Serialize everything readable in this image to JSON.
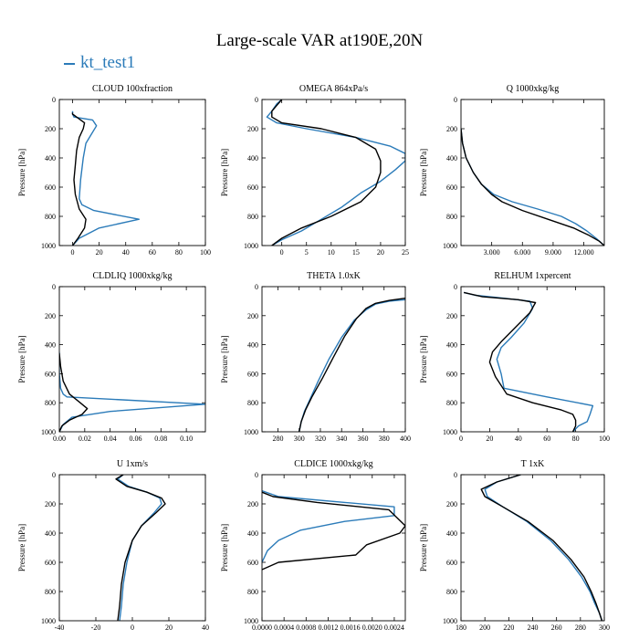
{
  "title": "Large-scale VAR at190E,20N",
  "legend": [
    {
      "name": "kt_test1",
      "color": "#2b7bb9"
    }
  ],
  "colors": {
    "series_1": "#2b7bb9",
    "series_2": "#000000"
  },
  "chart_data": [
    {
      "type": "line",
      "title": "CLOUD  100xfraction",
      "ylabel": "Pressure [hPa]",
      "xlim": [
        -10,
        100
      ],
      "ylim": [
        1000,
        0
      ],
      "xticks": [
        0,
        20,
        40,
        60,
        80,
        100
      ],
      "yticks": [
        0,
        200,
        400,
        600,
        800,
        1000
      ],
      "series": [
        {
          "name": "kt_test1",
          "x": [
            0,
            0,
            1,
            15,
            18,
            14,
            10,
            8,
            6,
            5,
            7,
            16,
            50,
            20,
            5,
            0
          ],
          "y": [
            80,
            100,
            120,
            140,
            180,
            240,
            300,
            400,
            550,
            680,
            720,
            760,
            820,
            880,
            950,
            1000
          ]
        },
        {
          "x": [
            0,
            0,
            3,
            9,
            8,
            5,
            3,
            2,
            1,
            2,
            5,
            10,
            9,
            4,
            0
          ],
          "y": [
            90,
            100,
            120,
            160,
            200,
            260,
            350,
            450,
            550,
            650,
            750,
            820,
            880,
            950,
            1000
          ]
        }
      ]
    },
    {
      "type": "line",
      "title": "OMEGA  864xPa/s",
      "ylabel": "Pressure [hPa]",
      "xlim": [
        -4,
        25
      ],
      "ylim": [
        1000,
        0
      ],
      "xticks": [
        0,
        5,
        10,
        15,
        20,
        25
      ],
      "yticks": [
        0,
        200,
        400,
        600,
        800,
        1000
      ],
      "series": [
        {
          "name": "kt_test1",
          "x": [
            0,
            -1,
            -2,
            -3,
            -1,
            5,
            15,
            22,
            25,
            25,
            23,
            20,
            16,
            12,
            8,
            4,
            0,
            -2
          ],
          "y": [
            0,
            30,
            80,
            120,
            160,
            200,
            260,
            320,
            370,
            420,
            480,
            560,
            640,
            740,
            820,
            900,
            960,
            1000
          ]
        },
        {
          "x": [
            0,
            -1,
            -2,
            -2,
            0,
            8,
            15,
            19,
            20,
            20,
            19,
            16,
            10,
            4,
            0,
            -2
          ],
          "y": [
            0,
            40,
            80,
            120,
            160,
            200,
            260,
            340,
            420,
            500,
            600,
            700,
            800,
            880,
            950,
            1000
          ]
        }
      ]
    },
    {
      "type": "line",
      "title": "Q  1000xkg/kg",
      "ylabel": "Pressure [hPa]",
      "xlim": [
        0,
        14000
      ],
      "ylim": [
        1000,
        0
      ],
      "xticks": [
        3000,
        6000,
        9000,
        12000
      ],
      "xticklabels": [
        "3.000",
        "6.000",
        "9.000",
        "12.000"
      ],
      "yticks": [
        0,
        200,
        400,
        600,
        800,
        1000
      ],
      "series": [
        {
          "name": "kt_test1",
          "x": [
            0,
            150,
            500,
            1200,
            2000,
            3200,
            5000,
            7500,
            9800,
            11200,
            12300,
            13200,
            14000
          ],
          "y": [
            200,
            300,
            400,
            500,
            580,
            650,
            700,
            750,
            800,
            850,
            900,
            950,
            1000
          ]
        },
        {
          "x": [
            0,
            150,
            500,
            1200,
            2000,
            3000,
            4000,
            6000,
            8500,
            11000,
            12500,
            13500,
            14000
          ],
          "y": [
            200,
            300,
            400,
            500,
            580,
            650,
            700,
            760,
            820,
            880,
            930,
            970,
            1000
          ]
        }
      ]
    },
    {
      "type": "line",
      "title": "CLDLIQ  1000xkg/kg",
      "ylabel": "Pressure [hPa]",
      "xlim": [
        0,
        0.115
      ],
      "ylim": [
        1000,
        0
      ],
      "xticks": [
        0,
        0.02,
        0.04,
        0.06,
        0.08,
        0.1
      ],
      "xticklabels": [
        "0.00",
        "0.02",
        "0.04",
        "0.06",
        "0.08",
        "0.10"
      ],
      "yticks": [
        0,
        200,
        400,
        600,
        800,
        1000
      ],
      "series": [
        {
          "name": "kt_test1",
          "x": [
            0,
            0,
            0.001,
            0.003,
            0.006,
            0.115,
            0.04,
            0.01,
            0.003,
            0
          ],
          "y": [
            450,
            600,
            700,
            740,
            760,
            810,
            860,
            900,
            950,
            1000
          ]
        },
        {
          "x": [
            0,
            0.001,
            0.003,
            0.008,
            0.015,
            0.022,
            0.018,
            0.008,
            0.002,
            0
          ],
          "y": [
            460,
            550,
            650,
            740,
            790,
            840,
            880,
            920,
            960,
            1000
          ]
        }
      ]
    },
    {
      "type": "line",
      "title": "THETA  1.0xK",
      "ylabel": "Pressure [hPa]",
      "xlim": [
        265,
        400
      ],
      "ylim": [
        1000,
        0
      ],
      "xticks": [
        280,
        300,
        320,
        340,
        360,
        380,
        400
      ],
      "yticks": [
        0,
        200,
        400,
        600,
        800,
        1000
      ],
      "series": [
        {
          "name": "kt_test1",
          "x": [
            400,
            385,
            372,
            363,
            352,
            340,
            328,
            318,
            310,
            305,
            302,
            300
          ],
          "y": [
            90,
            100,
            120,
            160,
            230,
            350,
            500,
            650,
            780,
            860,
            930,
            1000
          ]
        },
        {
          "x": [
            400,
            385,
            372,
            363,
            354,
            343,
            332,
            322,
            312,
            306,
            302,
            300
          ],
          "y": [
            80,
            95,
            115,
            150,
            220,
            340,
            490,
            630,
            760,
            850,
            930,
            1000
          ]
        }
      ]
    },
    {
      "type": "line",
      "title": "RELHUM  1xpercent",
      "ylabel": "Pressure [hPa]",
      "xlim": [
        0,
        100
      ],
      "ylim": [
        1000,
        0
      ],
      "xticks": [
        0,
        20,
        40,
        60,
        80,
        100
      ],
      "yticks": [
        0,
        200,
        400,
        600,
        800,
        1000
      ],
      "series": [
        {
          "name": "kt_test1",
          "x": [
            2,
            10,
            30,
            48,
            50,
            44,
            35,
            28,
            25,
            28,
            30,
            60,
            92,
            90,
            88,
            82,
            78
          ],
          "y": [
            40,
            60,
            80,
            100,
            150,
            250,
            350,
            420,
            500,
            600,
            700,
            760,
            820,
            880,
            930,
            960,
            1000
          ]
        },
        {
          "x": [
            2,
            15,
            40,
            52,
            48,
            38,
            28,
            22,
            20,
            24,
            32,
            50,
            70,
            78,
            80,
            80,
            78
          ],
          "y": [
            40,
            70,
            90,
            110,
            180,
            280,
            380,
            450,
            520,
            620,
            740,
            800,
            850,
            880,
            920,
            960,
            1000
          ]
        }
      ]
    },
    {
      "type": "line",
      "title": "U  1xm/s",
      "ylabel": "Pressure [hPa]",
      "xlim": [
        -40,
        40
      ],
      "ylim": [
        1000,
        0
      ],
      "xticks": [
        -40,
        -20,
        0,
        20,
        40
      ],
      "yticks": [
        0,
        200,
        400,
        600,
        800,
        1000
      ],
      "series": [
        {
          "name": "kt_test1",
          "x": [
            -5,
            -8,
            -2,
            8,
            15,
            16,
            12,
            5,
            0,
            -3,
            -5,
            -6,
            -7
          ],
          "y": [
            0,
            30,
            80,
            120,
            160,
            200,
            260,
            350,
            450,
            600,
            750,
            900,
            1000
          ]
        },
        {
          "x": [
            -5,
            -9,
            -3,
            8,
            16,
            18,
            13,
            5,
            0,
            -4,
            -6,
            -7,
            -8
          ],
          "y": [
            0,
            30,
            80,
            120,
            160,
            200,
            260,
            350,
            450,
            600,
            750,
            900,
            1000
          ]
        }
      ]
    },
    {
      "type": "line",
      "title": "CLDICE  1000xkg/kg",
      "ylabel": "Pressure [hPa]",
      "xlim": [
        0,
        0.0026
      ],
      "ylim": [
        1000,
        0
      ],
      "xticks": [
        0,
        0.0004,
        0.0008,
        0.0012,
        0.0016,
        0.002,
        0.0024
      ],
      "xticklabels": [
        "0.0000",
        "0.0004",
        "0.0008",
        "0.0012",
        "0.0016",
        "0.0020",
        "0.0024"
      ],
      "yticks": [
        0,
        200,
        400,
        600,
        800,
        1000
      ],
      "series": [
        {
          "name": "kt_test1",
          "x": [
            0,
            0.0003,
            0.0024,
            0.0024,
            0.0015,
            0.0007,
            0.0003,
            0.0001,
            0
          ],
          "y": [
            110,
            150,
            220,
            280,
            320,
            380,
            450,
            520,
            600
          ]
        },
        {
          "x": [
            0,
            0.0002,
            0.001,
            0.0023,
            0.0026,
            0.0025,
            0.0019,
            0.0017,
            0.0003,
            0
          ],
          "y": [
            120,
            150,
            190,
            240,
            350,
            400,
            480,
            550,
            600,
            650
          ]
        }
      ]
    },
    {
      "type": "line",
      "title": "T  1xK",
      "ylabel": "Pressure [hPa]",
      "xlim": [
        180,
        300
      ],
      "ylim": [
        1000,
        0
      ],
      "xticks": [
        180,
        200,
        220,
        240,
        260,
        280,
        300
      ],
      "yticks": [
        0,
        200,
        400,
        600,
        800,
        1000
      ],
      "series": [
        {
          "name": "kt_test1",
          "x": [
            230,
            210,
            200,
            202,
            215,
            235,
            255,
            270,
            281,
            288,
            292,
            296,
            298
          ],
          "y": [
            0,
            50,
            100,
            150,
            220,
            320,
            450,
            580,
            700,
            800,
            880,
            950,
            1000
          ]
        },
        {
          "x": [
            230,
            210,
            197,
            200,
            215,
            236,
            257,
            272,
            283,
            289,
            293,
            296,
            298
          ],
          "y": [
            0,
            50,
            100,
            150,
            220,
            320,
            450,
            580,
            700,
            800,
            880,
            950,
            1000
          ]
        }
      ]
    }
  ]
}
